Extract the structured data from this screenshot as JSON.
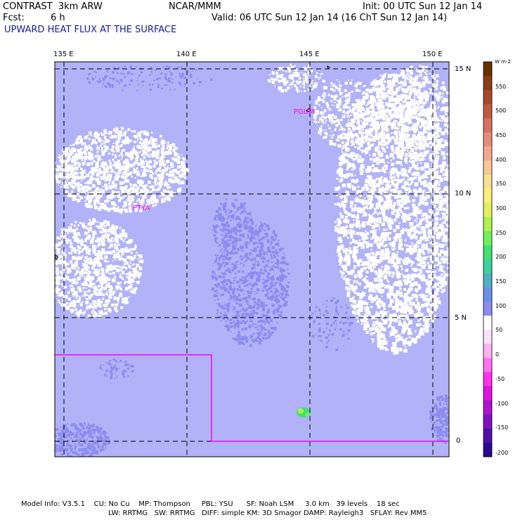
{
  "header": {
    "model": "CONTRAST  3km ARW",
    "fcst_label": "Fcst:",
    "fcst_value": "6 h",
    "center": "NCAR/MMM",
    "init": "Init: 00 UTC Sun 12 Jan 14",
    "valid": "Valid: 06 UTC Sun 12 Jan 14 (16 ChT Sun 12 Jan 14)",
    "field": "UPWARD HEAT FLUX AT THE SURFACE"
  },
  "map": {
    "lon_labels": [
      "135 E",
      "140 E",
      "145 E",
      "150 E"
    ],
    "lat_labels": [
      "15 N",
      "10 N",
      "5 N",
      "0"
    ],
    "stations": [
      "PGUM",
      "PTYA"
    ],
    "background_color": "#b2b2f8",
    "light_color": "#ffffff",
    "darker_color": "#8c8cf0",
    "boundary_color": "#ff00ff"
  },
  "colorbar": {
    "unit": "W m-2",
    "labels": [
      "550",
      "500",
      "450",
      "400",
      "350",
      "300",
      "250",
      "200",
      "150",
      "100",
      "50",
      "0",
      "-50",
      "-100",
      "-150",
      "-200"
    ],
    "colors": [
      "#6b3000",
      "#8b3c14",
      "#a84828",
      "#c05a40",
      "#d87060",
      "#e88c78",
      "#f4a890",
      "#f8c898",
      "#f8e090",
      "#f8f078",
      "#e0f060",
      "#b0f050",
      "#70f060",
      "#40e070",
      "#40d0a0",
      "#50b0c8",
      "#6c90e8",
      "#8c8cf0",
      "#ffffff",
      "#ffe0f8",
      "#ffb0f0",
      "#ff70f0",
      "#ff30e8",
      "#e010e0",
      "#b010d0",
      "#8010c0",
      "#5010a8",
      "#2a0a90"
    ]
  },
  "footer": {
    "line1": "Model Info: V3.5.1    CU: No Cu    MP: Thompson     PBL: YSU      SF: Noah LSM     3.0 km   39 levels    18 sec",
    "line2": "LW: RRTMG   SW: RRTMG   DIFF: simple KM: 3D Smagor DAMP: Rayleigh3   SFLAY: Rev MM5"
  }
}
